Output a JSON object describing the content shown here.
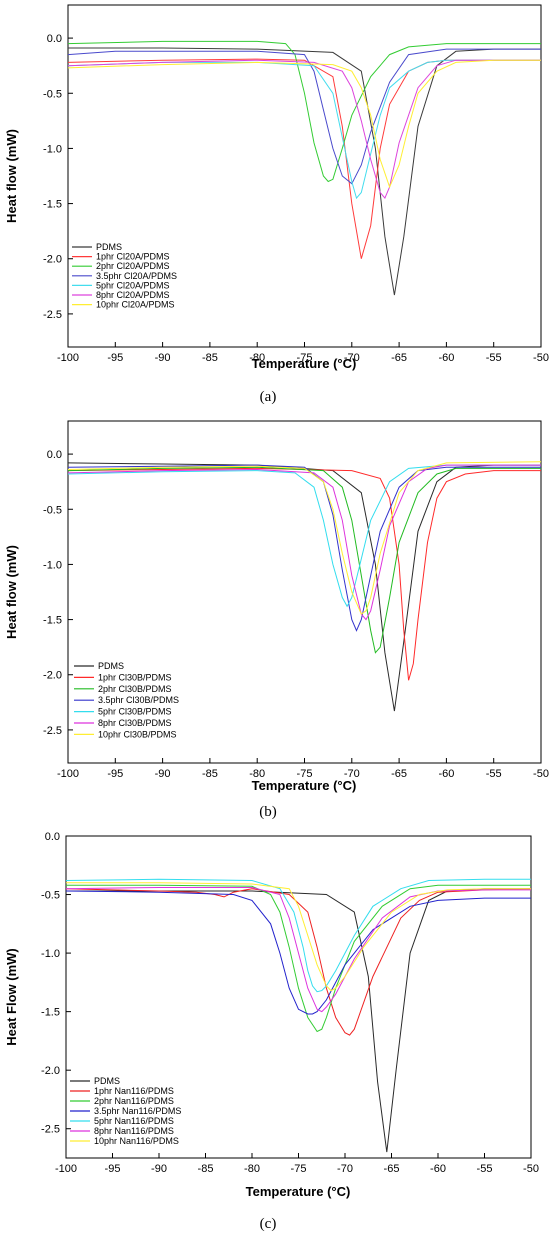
{
  "chart_data": [
    {
      "type": "line",
      "caption": "(a)",
      "xlabel": "Temperature (°C)",
      "ylabel": "Heat flow (mW)",
      "xlim": [
        -100,
        -50
      ],
      "ylim": [
        -2.8,
        0.3
      ],
      "xticks": [
        -100,
        -95,
        -90,
        -85,
        -80,
        -75,
        -70,
        -65,
        -60,
        -55,
        -50
      ],
      "yticks": [
        0.0,
        -0.5,
        -1.0,
        -1.5,
        -2.0,
        -2.5
      ],
      "legend_position": "bottom-left",
      "series": [
        {
          "name": "PDMS",
          "color": "#3a3a3a",
          "x": [
            -100,
            -90,
            -80,
            -72,
            -69,
            -67.5,
            -66.5,
            -65.5,
            -64.5,
            -63,
            -61,
            -59,
            -55,
            -50
          ],
          "y": [
            -0.09,
            -0.09,
            -0.1,
            -0.13,
            -0.3,
            -1.0,
            -1.8,
            -2.33,
            -1.8,
            -0.8,
            -0.25,
            -0.12,
            -0.1,
            -0.1
          ]
        },
        {
          "name": "1phr Cl20A/PDMS",
          "color": "#ff3b3b",
          "x": [
            -100,
            -90,
            -80,
            -75,
            -72,
            -71,
            -70,
            -69,
            -68,
            -67,
            -66,
            -64,
            -62,
            -60,
            -50
          ],
          "y": [
            -0.22,
            -0.2,
            -0.19,
            -0.2,
            -0.35,
            -0.8,
            -1.5,
            -2.0,
            -1.7,
            -1.0,
            -0.6,
            -0.3,
            -0.22,
            -0.2,
            -0.2
          ]
        },
        {
          "name": "2phr Cl20A/PDMS",
          "color": "#33cc33",
          "x": [
            -100,
            -90,
            -80,
            -77,
            -76,
            -75,
            -74,
            -73,
            -72.5,
            -72,
            -71,
            -70,
            -68,
            -66,
            -64,
            -60,
            -50
          ],
          "y": [
            -0.05,
            -0.03,
            -0.03,
            -0.05,
            -0.15,
            -0.5,
            -0.95,
            -1.25,
            -1.3,
            -1.28,
            -1.0,
            -0.7,
            -0.35,
            -0.15,
            -0.08,
            -0.05,
            -0.05
          ]
        },
        {
          "name": "3.5phr Cl20A/PDMS",
          "color": "#4a4acc",
          "x": [
            -100,
            -95,
            -90,
            -80,
            -75,
            -74,
            -73,
            -72,
            -71,
            -70,
            -69,
            -68,
            -66,
            -64,
            -60,
            -50
          ],
          "y": [
            -0.15,
            -0.12,
            -0.12,
            -0.12,
            -0.15,
            -0.3,
            -0.65,
            -1.0,
            -1.25,
            -1.32,
            -1.15,
            -0.85,
            -0.4,
            -0.15,
            -0.1,
            -0.1
          ]
        },
        {
          "name": "5phr Cl20A/PDMS",
          "color": "#44ddee",
          "x": [
            -100,
            -90,
            -80,
            -74,
            -72,
            -71,
            -70,
            -69.5,
            -69,
            -68,
            -67,
            -66,
            -64,
            -62,
            -60,
            -50
          ],
          "y": [
            -0.25,
            -0.22,
            -0.22,
            -0.25,
            -0.5,
            -0.9,
            -1.3,
            -1.45,
            -1.4,
            -1.05,
            -0.7,
            -0.45,
            -0.3,
            -0.22,
            -0.2,
            -0.2
          ]
        },
        {
          "name": "8phr Cl20A/PDMS",
          "color": "#dd44dd",
          "x": [
            -100,
            -90,
            -80,
            -74,
            -71,
            -70,
            -69,
            -68,
            -67,
            -66.5,
            -66,
            -65,
            -63,
            -61,
            -59,
            -50
          ],
          "y": [
            -0.25,
            -0.22,
            -0.2,
            -0.22,
            -0.3,
            -0.45,
            -0.75,
            -1.1,
            -1.4,
            -1.45,
            -1.35,
            -0.95,
            -0.45,
            -0.25,
            -0.2,
            -0.2
          ]
        },
        {
          "name": "10phr Cl20A/PDMS",
          "color": "#ffee33",
          "x": [
            -100,
            -90,
            -80,
            -72,
            -70,
            -69,
            -68,
            -67,
            -66,
            -65,
            -64,
            -63,
            -61,
            -59,
            -55,
            -50
          ],
          "y": [
            -0.27,
            -0.24,
            -0.22,
            -0.24,
            -0.3,
            -0.45,
            -0.7,
            -1.1,
            -1.35,
            -1.15,
            -0.8,
            -0.5,
            -0.3,
            -0.22,
            -0.2,
            -0.2
          ]
        }
      ]
    },
    {
      "type": "line",
      "caption": "(b)",
      "xlabel": "Temperature (°C)",
      "ylabel": "Heat flow (mW)",
      "xlim": [
        -100,
        -50
      ],
      "ylim": [
        -2.8,
        0.3
      ],
      "xticks": [
        -100,
        -95,
        -90,
        -85,
        -80,
        -75,
        -70,
        -65,
        -60,
        -55,
        -50
      ],
      "yticks": [
        0.0,
        -0.5,
        -1.0,
        -1.5,
        -2.0,
        -2.5
      ],
      "legend_position": "bottom-left",
      "series": [
        {
          "name": "PDMS",
          "color": "#2a2a2a",
          "x": [
            -100,
            -90,
            -80,
            -72,
            -69,
            -67.5,
            -66.5,
            -65.5,
            -64.5,
            -63,
            -61,
            -59,
            -55,
            -50
          ],
          "y": [
            -0.08,
            -0.09,
            -0.1,
            -0.15,
            -0.35,
            -1.0,
            -1.8,
            -2.33,
            -1.7,
            -0.7,
            -0.25,
            -0.12,
            -0.1,
            -0.1
          ]
        },
        {
          "name": "1phr Cl30B/PDMS",
          "color": "#ff2a2a",
          "x": [
            -100,
            -90,
            -80,
            -70,
            -67,
            -66,
            -65,
            -64.5,
            -64,
            -63.5,
            -63,
            -62,
            -61,
            -60,
            -58,
            -55,
            -50
          ],
          "y": [
            -0.15,
            -0.14,
            -0.13,
            -0.15,
            -0.22,
            -0.4,
            -1.0,
            -1.6,
            -2.05,
            -1.9,
            -1.5,
            -0.8,
            -0.4,
            -0.25,
            -0.18,
            -0.15,
            -0.15
          ]
        },
        {
          "name": "2phr Cl30B/PDMS",
          "color": "#22bb22",
          "x": [
            -100,
            -90,
            -80,
            -73,
            -71,
            -70,
            -69,
            -68,
            -67.5,
            -67,
            -66,
            -65,
            -63,
            -61,
            -59,
            -50
          ],
          "y": [
            -0.15,
            -0.13,
            -0.12,
            -0.15,
            -0.3,
            -0.6,
            -1.1,
            -1.6,
            -1.8,
            -1.75,
            -1.3,
            -0.8,
            -0.35,
            -0.18,
            -0.13,
            -0.13
          ]
        },
        {
          "name": "3.5phr Cl30B/PDMS",
          "color": "#3333cc",
          "x": [
            -100,
            -90,
            -80,
            -75,
            -73,
            -72,
            -71,
            -70,
            -69.5,
            -69,
            -68,
            -67,
            -65,
            -63,
            -60,
            -50
          ],
          "y": [
            -0.12,
            -0.11,
            -0.1,
            -0.12,
            -0.25,
            -0.55,
            -1.05,
            -1.5,
            -1.6,
            -1.5,
            -1.1,
            -0.7,
            -0.3,
            -0.15,
            -0.12,
            -0.12
          ]
        },
        {
          "name": "5phr Cl30B/PDMS",
          "color": "#33ddee",
          "x": [
            -100,
            -90,
            -80,
            -76,
            -74,
            -73,
            -72,
            -71,
            -70.5,
            -70,
            -69,
            -68,
            -66,
            -64,
            -60,
            -50
          ],
          "y": [
            -0.18,
            -0.16,
            -0.15,
            -0.17,
            -0.3,
            -0.6,
            -1.0,
            -1.3,
            -1.38,
            -1.3,
            -0.95,
            -0.6,
            -0.25,
            -0.13,
            -0.1,
            -0.1
          ]
        },
        {
          "name": "8phr Cl30B/PDMS",
          "color": "#dd33dd",
          "x": [
            -100,
            -90,
            -80,
            -74,
            -72,
            -71,
            -70,
            -69,
            -68.5,
            -68,
            -67,
            -66,
            -64,
            -62,
            -60,
            -50
          ],
          "y": [
            -0.17,
            -0.15,
            -0.14,
            -0.17,
            -0.3,
            -0.6,
            -1.1,
            -1.45,
            -1.5,
            -1.42,
            -1.05,
            -0.65,
            -0.25,
            -0.13,
            -0.1,
            -0.1
          ]
        },
        {
          "name": "10phr Cl30B/PDMS",
          "color": "#ffee33",
          "x": [
            -100,
            -90,
            -80,
            -75,
            -73,
            -72,
            -71,
            -70,
            -69,
            -68.5,
            -68,
            -67,
            -65,
            -63,
            -60,
            -50
          ],
          "y": [
            -0.14,
            -0.12,
            -0.11,
            -0.13,
            -0.25,
            -0.5,
            -0.9,
            -1.25,
            -1.45,
            -1.42,
            -1.3,
            -0.9,
            -0.35,
            -0.15,
            -0.08,
            -0.07
          ]
        }
      ]
    },
    {
      "type": "line",
      "caption": "(c)",
      "xlabel": "Temperature (°C)",
      "ylabel": "Heat Flow (mW)",
      "xlim": [
        -100,
        -50
      ],
      "ylim": [
        -2.75,
        0.0
      ],
      "xticks": [
        -100,
        -95,
        -90,
        -85,
        -80,
        -75,
        -70,
        -65,
        -60,
        -55,
        -50
      ],
      "yticks": [
        0.0,
        -0.5,
        -1.0,
        -1.5,
        -2.0,
        -2.5
      ],
      "legend_position": "bottom-left",
      "series": [
        {
          "name": "PDMS",
          "color": "#2a2a2a",
          "x": [
            -100,
            -90,
            -80,
            -72,
            -69,
            -67.5,
            -66.5,
            -65.5,
            -64.5,
            -63,
            -61,
            -59,
            -55,
            -50
          ],
          "y": [
            -0.47,
            -0.47,
            -0.47,
            -0.5,
            -0.65,
            -1.2,
            -2.1,
            -2.7,
            -2.0,
            -1.0,
            -0.55,
            -0.47,
            -0.45,
            -0.45
          ]
        },
        {
          "name": "1phr Nan116/PDMS",
          "color": "#ee2222",
          "x": [
            -100,
            -90,
            -86,
            -84,
            -83,
            -82,
            -80,
            -76,
            -74,
            -73,
            -72,
            -71,
            -70,
            -69.5,
            -69,
            -67,
            -64,
            -62,
            -60,
            -55,
            -50
          ],
          "y": [
            -0.45,
            -0.47,
            -0.48,
            -0.5,
            -0.52,
            -0.48,
            -0.45,
            -0.5,
            -0.65,
            -0.95,
            -1.3,
            -1.55,
            -1.68,
            -1.7,
            -1.65,
            -1.2,
            -0.7,
            -0.55,
            -0.48,
            -0.46,
            -0.45
          ]
        },
        {
          "name": "2phr Nan116/PDMS",
          "color": "#33cc33",
          "x": [
            -100,
            -90,
            -80,
            -78,
            -77,
            -76,
            -75,
            -74,
            -73,
            -72.5,
            -72,
            -71,
            -69,
            -66,
            -63,
            -60,
            -55,
            -50
          ],
          "y": [
            -0.42,
            -0.42,
            -0.43,
            -0.5,
            -0.65,
            -0.95,
            -1.3,
            -1.55,
            -1.67,
            -1.65,
            -1.55,
            -1.3,
            -0.9,
            -0.6,
            -0.45,
            -0.42,
            -0.42,
            -0.42
          ]
        },
        {
          "name": "3.5phr Nan116/PDMS",
          "color": "#2222cc",
          "x": [
            -100,
            -90,
            -82,
            -80,
            -78,
            -77,
            -76,
            -75,
            -74,
            -73.5,
            -73,
            -72,
            -70,
            -67,
            -63,
            -60,
            -55,
            -50
          ],
          "y": [
            -0.47,
            -0.48,
            -0.5,
            -0.55,
            -0.75,
            -1.0,
            -1.3,
            -1.48,
            -1.52,
            -1.52,
            -1.5,
            -1.4,
            -1.1,
            -0.8,
            -0.6,
            -0.55,
            -0.53,
            -0.53
          ]
        },
        {
          "name": "5phr Nan116/PDMS",
          "color": "#33ddee",
          "x": [
            -100,
            -90,
            -80,
            -77,
            -75.5,
            -74.5,
            -74,
            -73.5,
            -73,
            -72.5,
            -72,
            -71,
            -69,
            -67,
            -64,
            -61,
            -55,
            -50
          ],
          "y": [
            -0.38,
            -0.37,
            -0.38,
            -0.45,
            -0.65,
            -0.95,
            -1.15,
            -1.28,
            -1.33,
            -1.32,
            -1.28,
            -1.15,
            -0.85,
            -0.6,
            -0.45,
            -0.38,
            -0.37,
            -0.37
          ]
        },
        {
          "name": "8phr Nan116/PDMS",
          "color": "#dd33dd",
          "x": [
            -100,
            -90,
            -80,
            -77,
            -76,
            -75,
            -74,
            -73,
            -72.5,
            -72,
            -71,
            -69,
            -66,
            -63,
            -60,
            -55,
            -50
          ],
          "y": [
            -0.45,
            -0.44,
            -0.44,
            -0.5,
            -0.7,
            -1.0,
            -1.3,
            -1.48,
            -1.5,
            -1.46,
            -1.35,
            -1.05,
            -0.7,
            -0.52,
            -0.47,
            -0.46,
            -0.46
          ]
        },
        {
          "name": "10phr Nan116/PDMS",
          "color": "#ffee33",
          "x": [
            -100,
            -90,
            -80,
            -76,
            -75,
            -74,
            -73,
            -72,
            -71.5,
            -71,
            -70,
            -68,
            -65,
            -62,
            -59,
            -55,
            -50
          ],
          "y": [
            -0.4,
            -0.4,
            -0.41,
            -0.45,
            -0.6,
            -0.85,
            -1.1,
            -1.28,
            -1.32,
            -1.3,
            -1.2,
            -0.95,
            -0.65,
            -0.5,
            -0.46,
            -0.45,
            -0.45
          ]
        }
      ]
    }
  ]
}
